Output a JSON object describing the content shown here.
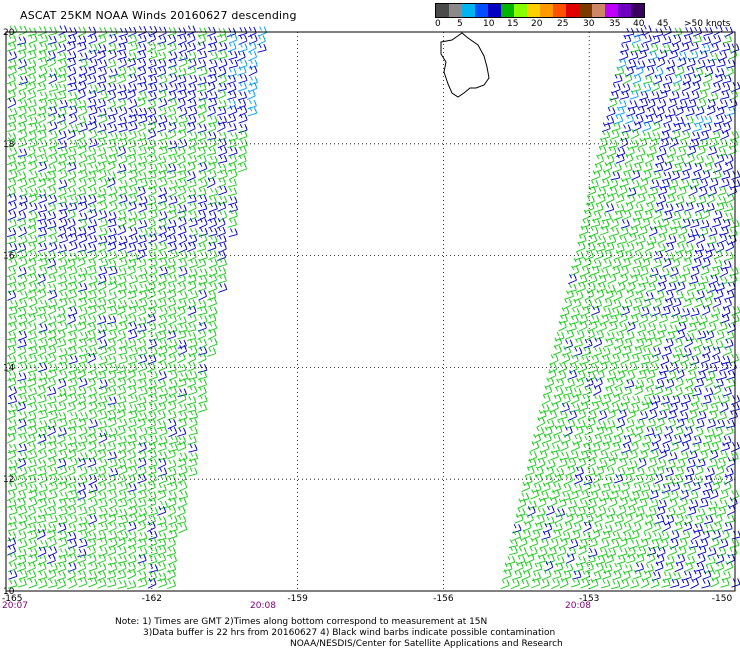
{
  "title": "ASCAT 25KM NOAA Winds 20160627 descending",
  "legend": {
    "colors": [
      "#4a4a4a",
      "#8a8a8a",
      "#00b4f0",
      "#0050ff",
      "#0000c0",
      "#00b400",
      "#88ff00",
      "#ffd000",
      "#ff9a00",
      "#ff5000",
      "#e00000",
      "#7a3a00",
      "#cc8866",
      "#c000ff",
      "#7000c0",
      "#3a0060"
    ],
    "labels": [
      "0",
      "5",
      "10",
      "15",
      "20",
      "25",
      "30",
      "35",
      "40",
      "45",
      ">50 knots"
    ]
  },
  "map": {
    "lat_labels": [
      "20",
      "18",
      "16",
      "14",
      "12",
      "10"
    ],
    "lon_labels": [
      "-165",
      "-162",
      "-159",
      "-156",
      "-153",
      "-150"
    ],
    "lat_values": [
      20,
      18,
      16,
      14,
      12,
      10
    ],
    "lon_values": [
      -165,
      -162,
      -159,
      -156,
      -153,
      -150
    ],
    "pass_times": [
      "20:07",
      "20:08",
      "20:08"
    ],
    "time_color": "#800080",
    "barb_colors": {
      "green": "#10cc10",
      "blue": "#0000cc",
      "cyan": "#00a0f0"
    }
  },
  "notes": {
    "line1": "Note: 1) Times are GMT  2)Times along bottom correspond to measurement at 15N",
    "line2": "3)Data buffer is 22 hrs from 20160627  4) Black wind barbs indicate possible contamination",
    "line3": "NOAA/NESDIS/Center for Satellite Applications and Research"
  }
}
